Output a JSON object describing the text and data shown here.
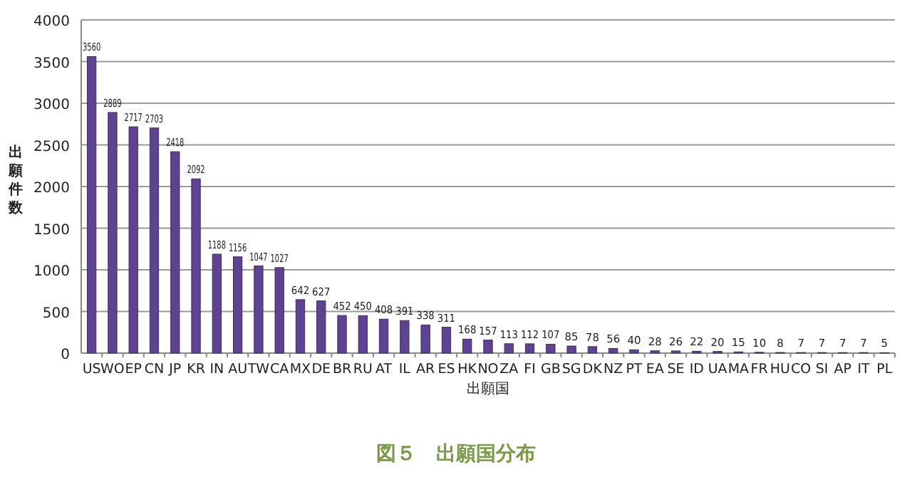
{
  "chart_data": {
    "type": "bar",
    "title": "図５　出願国分布",
    "xlabel": "出願国",
    "ylabel": "出願件数",
    "categories": [
      "US",
      "WO",
      "EP",
      "CN",
      "JP",
      "KR",
      "IN",
      "AU",
      "TW",
      "CA",
      "MX",
      "DE",
      "BR",
      "RU",
      "AT",
      "IL",
      "AR",
      "ES",
      "HK",
      "NO",
      "ZA",
      "FI",
      "GB",
      "SG",
      "DK",
      "NZ",
      "PT",
      "EA",
      "SE",
      "ID",
      "UA",
      "MA",
      "FR",
      "HU",
      "CO",
      "SI",
      "AP",
      "IT",
      "PL"
    ],
    "values": [
      3560,
      2889,
      2717,
      2703,
      2418,
      2092,
      1188,
      1156,
      1047,
      1027,
      642,
      627,
      452,
      450,
      408,
      391,
      338,
      311,
      168,
      157,
      113,
      112,
      107,
      85,
      78,
      56,
      40,
      28,
      26,
      22,
      20,
      15,
      10,
      8,
      7,
      7,
      7,
      7,
      5
    ],
    "color": "#5e4391",
    "ylim": [
      0,
      4000
    ],
    "yticks": [
      0,
      500,
      1000,
      1500,
      2000,
      2500,
      3000,
      3500,
      4000
    ],
    "grid": "y",
    "data_labels": true
  }
}
